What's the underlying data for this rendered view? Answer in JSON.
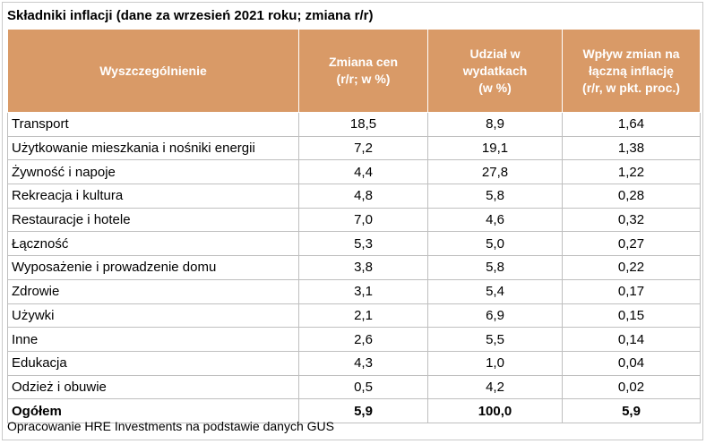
{
  "title": "Składniki inflacji (dane za wrzesień 2021 roku; zmiana r/r)",
  "header": {
    "col1": "Wyszczególnienie",
    "col2": [
      "Zmiana cen",
      "(r/r; w %)"
    ],
    "col3": [
      "Udział w",
      "wydatkach",
      "(w %)"
    ],
    "col4": [
      "Wpływ zmian na",
      "łączną inflację",
      "(r/r, w pkt. proc.)"
    ]
  },
  "rows": [
    {
      "label": "Transport",
      "price_change": "18,5",
      "share": "8,9",
      "impact": "1,64"
    },
    {
      "label": "Użytkowanie mieszkania i nośniki energii",
      "price_change": "7,2",
      "share": "19,1",
      "impact": "1,38"
    },
    {
      "label": "Żywność i napoje",
      "price_change": "4,4",
      "share": "27,8",
      "impact": "1,22"
    },
    {
      "label": "Rekreacja i kultura",
      "price_change": "4,8",
      "share": "5,8",
      "impact": "0,28"
    },
    {
      "label": "Restauracje i hotele",
      "price_change": "7,0",
      "share": "4,6",
      "impact": "0,32"
    },
    {
      "label": "Łączność",
      "price_change": "5,3",
      "share": "5,0",
      "impact": "0,27"
    },
    {
      "label": "Wyposażenie i prowadzenie domu",
      "price_change": "3,8",
      "share": "5,8",
      "impact": "0,22"
    },
    {
      "label": "Zdrowie",
      "price_change": "3,1",
      "share": "5,4",
      "impact": "0,17"
    },
    {
      "label": "Używki",
      "price_change": "2,1",
      "share": "6,9",
      "impact": "0,15"
    },
    {
      "label": "Inne",
      "price_change": "2,6",
      "share": "5,5",
      "impact": "0,14"
    },
    {
      "label": "Edukacja",
      "price_change": "4,3",
      "share": "1,0",
      "impact": "0,04"
    },
    {
      "label": "Odzież i obuwie",
      "price_change": "0,5",
      "share": "4,2",
      "impact": "0,02"
    }
  ],
  "total": {
    "label": "Ogółem",
    "price_change": "5,9",
    "share": "100,0",
    "impact": "5,9"
  },
  "footer": "Opracowanie HRE Investments na podstawie danych GUS",
  "colors": {
    "header_bg": "#d99a67",
    "header_text": "#ffffff",
    "grid": "#bfbfbf"
  }
}
